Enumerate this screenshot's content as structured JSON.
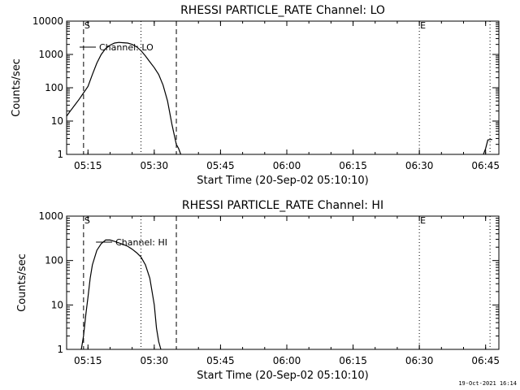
{
  "footer": {
    "timestamp": "19-Oct-2021 16:14"
  },
  "chart_data": [
    {
      "type": "line",
      "title": "RHESSI PARTICLE_RATE Channel: LO",
      "xlabel": "Start Time (20-Sep-02 05:10:10)",
      "ylabel": "Counts/sec",
      "yscale": "log",
      "ylim": [
        1,
        10000
      ],
      "xlim": [
        "05:10:10",
        "06:48:00"
      ],
      "x_ticks": [
        "05:15",
        "05:30",
        "05:45",
        "06:00",
        "06:15",
        "06:30",
        "06:45"
      ],
      "y_ticks": [
        "1",
        "10",
        "100",
        "1000",
        "10000"
      ],
      "series": [
        {
          "name": "Channel: LO",
          "x": [
            "05:10:10",
            "05:11:00",
            "05:12:00",
            "05:13:00",
            "05:14:00",
            "05:15:00",
            "05:16:00",
            "05:17:00",
            "05:18:00",
            "05:19:00",
            "05:20:00",
            "05:21:00",
            "05:22:00",
            "05:23:00",
            "05:24:00",
            "05:25:00",
            "05:26:00",
            "05:27:00",
            "05:28:00",
            "05:29:00",
            "05:30:00",
            "05:31:00",
            "05:32:00",
            "05:33:00",
            "05:34:00",
            "05:35:00",
            "05:35:30",
            "05:36:00"
          ],
          "y": [
            14,
            20,
            30,
            45,
            70,
            110,
            250,
            550,
            1000,
            1500,
            1900,
            2200,
            2300,
            2250,
            2200,
            2000,
            1700,
            1300,
            900,
            600,
            400,
            250,
            120,
            40,
            8,
            2,
            1.5,
            1
          ]
        },
        {
          "name": "",
          "x": [
            "06:44:30",
            "06:45:00",
            "06:45:30",
            "06:46:00",
            "06:46:30"
          ],
          "y": [
            1,
            1.5,
            2.7,
            2.8,
            2.8
          ]
        }
      ],
      "markers": [
        {
          "label": "S",
          "x": "05:14:00",
          "style": "dashed"
        },
        {
          "label": "",
          "x": "05:27:00",
          "style": "dotted"
        },
        {
          "label": "",
          "x": "05:35:00",
          "style": "dashed"
        },
        {
          "label": "E",
          "x": "06:30:00",
          "style": "dotted"
        },
        {
          "label": "",
          "x": "06:46:00",
          "style": "dotted"
        }
      ]
    },
    {
      "type": "line",
      "title": "RHESSI PARTICLE_RATE Channel: HI",
      "xlabel": "Start Time (20-Sep-02 05:10:10)",
      "ylabel": "Counts/sec",
      "yscale": "log",
      "ylim": [
        1,
        1000
      ],
      "xlim": [
        "05:10:10",
        "06:48:00"
      ],
      "x_ticks": [
        "05:15",
        "05:30",
        "05:45",
        "06:00",
        "06:15",
        "06:30",
        "06:45"
      ],
      "y_ticks": [
        "1",
        "10",
        "100",
        "1000"
      ],
      "series": [
        {
          "name": "Channel: HI",
          "x": [
            "05:13:30",
            "05:14:00",
            "05:14:30",
            "05:15:00",
            "05:15:30",
            "05:16:00",
            "05:17:00",
            "05:18:00",
            "05:19:00",
            "05:20:00",
            "05:21:00",
            "05:22:00",
            "05:23:00",
            "05:24:00",
            "05:25:00",
            "05:26:00",
            "05:27:00",
            "05:28:00",
            "05:29:00",
            "05:30:00",
            "05:30:30",
            "05:31:00",
            "05:31:30"
          ],
          "y": [
            1,
            2,
            6,
            15,
            40,
            80,
            170,
            240,
            290,
            290,
            270,
            250,
            230,
            210,
            180,
            150,
            120,
            80,
            40,
            10,
            3,
            1.5,
            1
          ]
        }
      ],
      "markers": [
        {
          "label": "S",
          "x": "05:14:00",
          "style": "dashed"
        },
        {
          "label": "",
          "x": "05:27:00",
          "style": "dotted"
        },
        {
          "label": "",
          "x": "05:35:00",
          "style": "dashed"
        },
        {
          "label": "E",
          "x": "06:30:00",
          "style": "dotted"
        },
        {
          "label": "",
          "x": "06:46:00",
          "style": "dotted"
        }
      ]
    }
  ]
}
